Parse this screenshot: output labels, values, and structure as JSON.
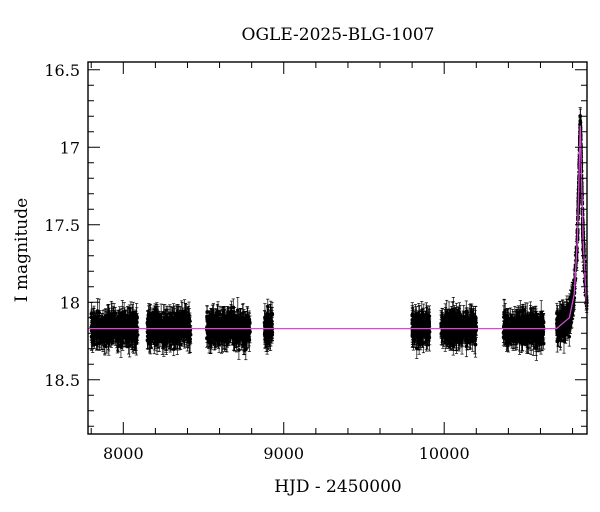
{
  "chart_data": {
    "type": "scatter",
    "title": "OGLE-2025-BLG-1007",
    "xlabel": "HJD - 2450000",
    "ylabel": "I magnitude",
    "xlim": [
      7780,
      10890
    ],
    "ylim": [
      18.85,
      16.45
    ],
    "y_inverted": true,
    "grid": false,
    "legend": "none",
    "x_ticks": [
      8000,
      9000,
      10000
    ],
    "x_tick_labels": [
      "8000",
      "9000",
      "10000"
    ],
    "y_ticks": [
      16.5,
      17,
      17.5,
      18,
      18.5
    ],
    "y_tick_labels": [
      "16.5",
      "17",
      "17.5",
      "18",
      "18.5"
    ],
    "series": [
      {
        "kind": "observations_with_error_bars",
        "color": "#000000",
        "baseline_mag": 18.18,
        "typical_error": 0.06,
        "observing_seasons_hjd": [
          [
            7800,
            8090
          ],
          [
            8150,
            8420
          ],
          [
            8520,
            8790
          ],
          [
            8880,
            8930
          ],
          [
            9800,
            9910
          ],
          [
            9980,
            10200
          ],
          [
            10370,
            10620
          ],
          [
            10700,
            10890
          ]
        ]
      },
      {
        "kind": "model_fit",
        "color": "#d946d8",
        "baseline_mag": 18.17,
        "peak_hjd": 10848,
        "peak_mag": 16.86,
        "x": [
          7780,
          10700,
          10780,
          10810,
          10830,
          10840,
          10845,
          10848,
          10851,
          10856,
          10866,
          10886,
          10890
        ],
        "y": [
          18.17,
          18.17,
          18.1,
          17.95,
          17.6,
          17.2,
          16.97,
          16.86,
          16.97,
          17.2,
          17.6,
          18.0,
          18.05
        ]
      }
    ]
  }
}
